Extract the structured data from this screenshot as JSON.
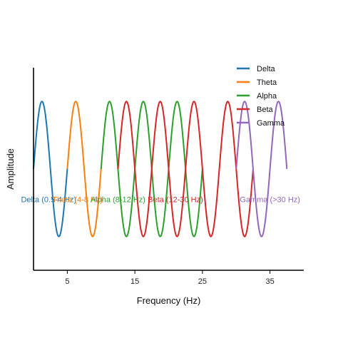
{
  "chart_data": {
    "type": "line",
    "title": "",
    "xlabel": "Frequency (Hz)",
    "ylabel": "Amplitude",
    "xlim": [
      0,
      40
    ],
    "ylim": [
      -1.5,
      1.5
    ],
    "xticks": [
      5,
      15,
      25,
      35
    ],
    "grid": false,
    "legend": "top-right",
    "series": [
      {
        "name": "Delta",
        "color": "#1f77b4",
        "x_start": 0.0,
        "x_end": 5.0,
        "period": 5.0,
        "amplitude": 1.0
      },
      {
        "name": "Theta",
        "color": "#ff7f0e",
        "x_start": 5.0,
        "x_end": 10.0,
        "period": 5.0,
        "amplitude": 1.0
      },
      {
        "name": "Alpha",
        "color": "#2ca02c",
        "x_start": 10.0,
        "x_end": 25.0,
        "period": 5.0,
        "amplitude": 1.0
      },
      {
        "name": "Beta",
        "color": "#d62728",
        "x_start": 12.5,
        "x_end": 32.5,
        "period": 5.0,
        "amplitude": 1.0
      },
      {
        "name": "Gamma",
        "color": "#9467bd",
        "x_start": 30.0,
        "x_end": 37.5,
        "period": 5.0,
        "amplitude": 1.0
      }
    ],
    "annotations": [
      {
        "text": "Delta (0.5-4 Hz)",
        "x": 2.25,
        "y": -0.45,
        "color": "#1f77b4"
      },
      {
        "text": "Theta (4-8 Hz)",
        "x": 6.5,
        "y": -0.45,
        "color": "#ff7f0e"
      },
      {
        "text": "Alpha (8-12 Hz)",
        "x": 12.5,
        "y": -0.45,
        "color": "#2ca02c"
      },
      {
        "text": "Beta (12-30 Hz)",
        "x": 21.0,
        "y": -0.45,
        "color": "#d62728"
      },
      {
        "text": "Gamma (>30 Hz)",
        "x": 35.0,
        "y": -0.45,
        "color": "#9467bd"
      }
    ]
  }
}
